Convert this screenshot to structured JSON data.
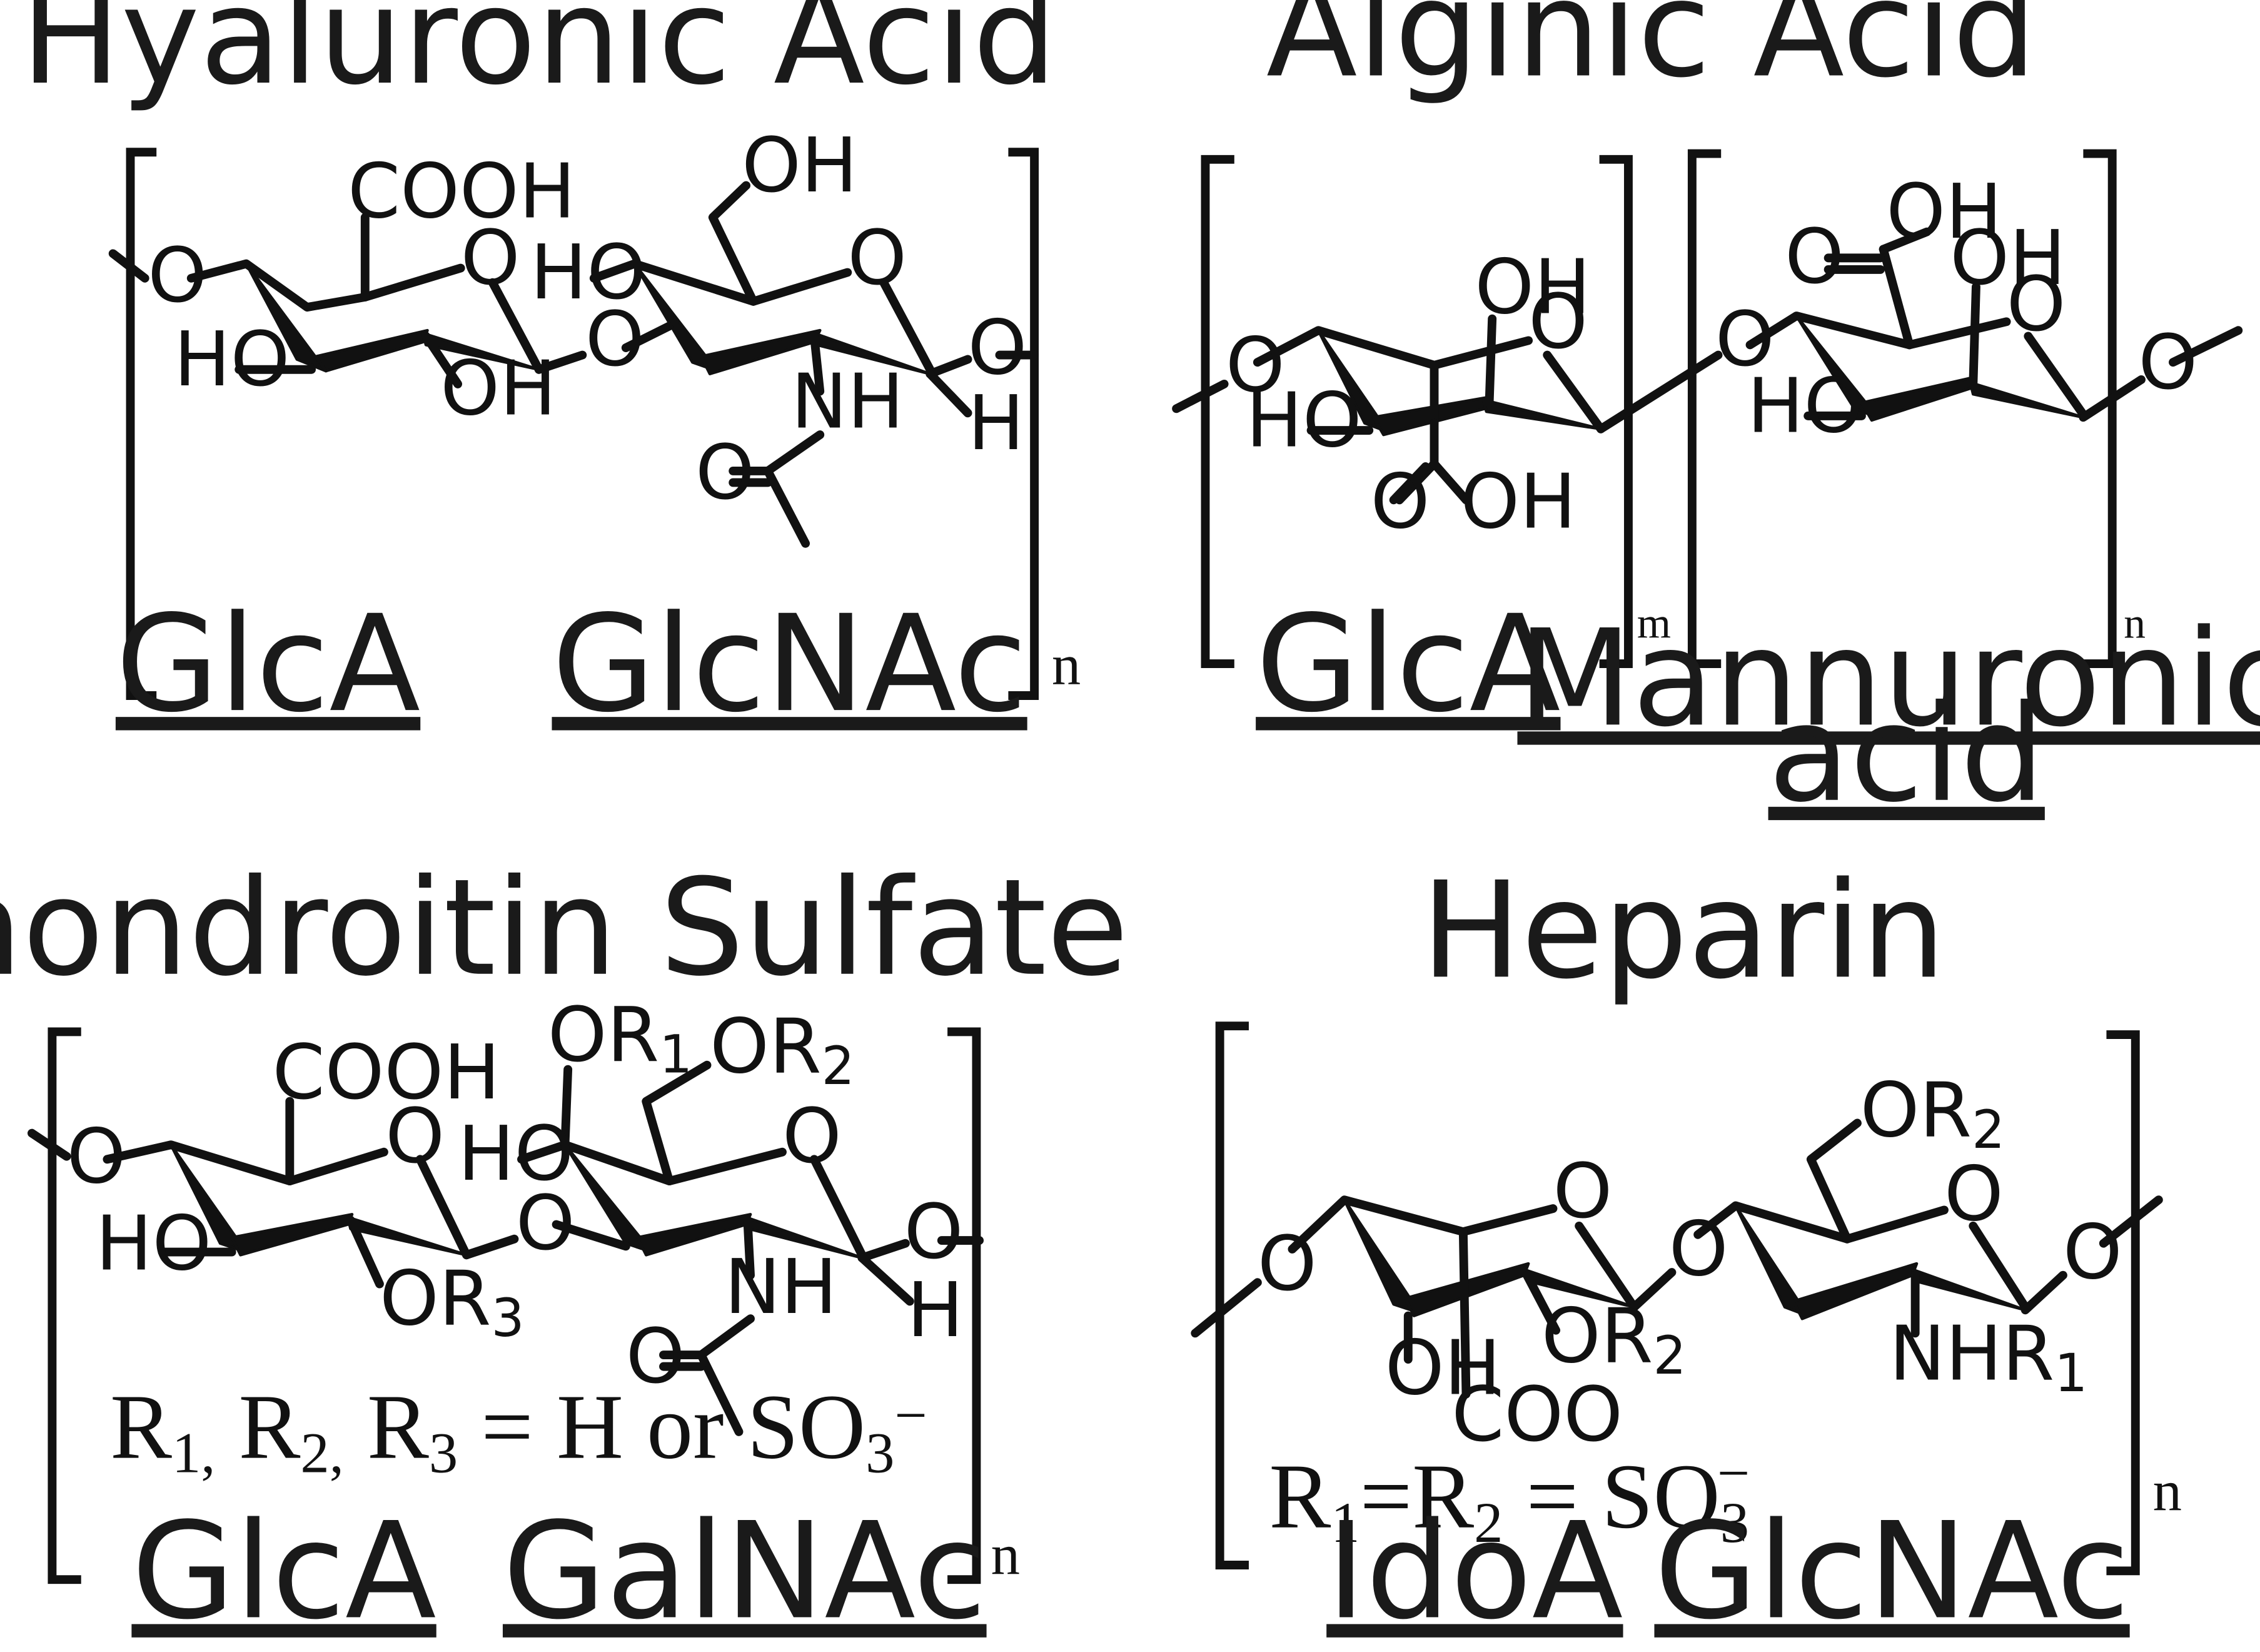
{
  "panels": {
    "hyaluronic": {
      "title": "Hyaluronic Acid",
      "unit1": "GlcA",
      "unit2": "GlcNAc",
      "repeat": "n",
      "labels": {
        "cooh": "COOH",
        "o_ring1": "O",
        "o_left": "O",
        "ho1": "HO",
        "oh1": "OH",
        "o_bridge": "O",
        "ho2": "HO",
        "oh_top": "OH",
        "o_ring2": "O",
        "nh": "NH",
        "o_carbonyl": "O",
        "h": "H",
        "o_right": "O"
      }
    },
    "alginic": {
      "title": "Alginic Acid",
      "unit1": "GlcA",
      "unit2_line1": "Mannuronic",
      "unit2_line2": "acid",
      "repeat1": "m",
      "repeat2": "n",
      "labels": {
        "o_left": "O",
        "oh1": "OH",
        "o_ring1": "O",
        "ho1": "HO",
        "o_carbonyl1": "O",
        "oh_acid1": "OH",
        "o_bridge": "O",
        "oh_acid2": "OH",
        "o_carbonyl2": "O",
        "oh2": "OH",
        "o_ring2": "O",
        "ho2": "HO",
        "o_right": "O"
      }
    },
    "chondroitin": {
      "title": "Chondroitin Sulfate",
      "unit1": "GlcA",
      "unit2": "GalNAc",
      "repeat": "n",
      "note": {
        "main": "R",
        "s1": "1,",
        "s2": "2,",
        "s3": "3",
        "rest": " = H or SO",
        "sub3": "3",
        "charge": "−"
      },
      "labels": {
        "o_left": "O",
        "cooh": "COOH",
        "o_ring1": "O",
        "ho1": "HO",
        "or3_o": "OR",
        "or3_s": "3",
        "o_bridge": "O",
        "or1_o": "OR",
        "or1_s": "1",
        "or2_o": "OR",
        "or2_s": "2",
        "ho2": "HO",
        "o_ring2": "O",
        "nh": "NH",
        "o_carbonyl": "O",
        "h": "H",
        "o_right": "O"
      }
    },
    "heparin": {
      "title": "Heparin",
      "unit1": "IdoA",
      "unit2": "GlcNAc",
      "repeat": "n",
      "note": {
        "r": "R",
        "s1": "1",
        "eq": "=R",
        "s2": "2",
        "rest": " = SO",
        "sub3": "3",
        "charge": "−"
      },
      "labels": {
        "o_left": "O",
        "o_ring1": "O",
        "or2a_o": "OR",
        "or2a_s": "2",
        "oh": "OH",
        "coo": "COO",
        "o_bridge": "O",
        "or2b_o": "OR",
        "or2b_s": "2",
        "o_ring2": "O",
        "nhr_o": "NHR",
        "nhr_s": "1",
        "o_right": "O"
      }
    }
  }
}
